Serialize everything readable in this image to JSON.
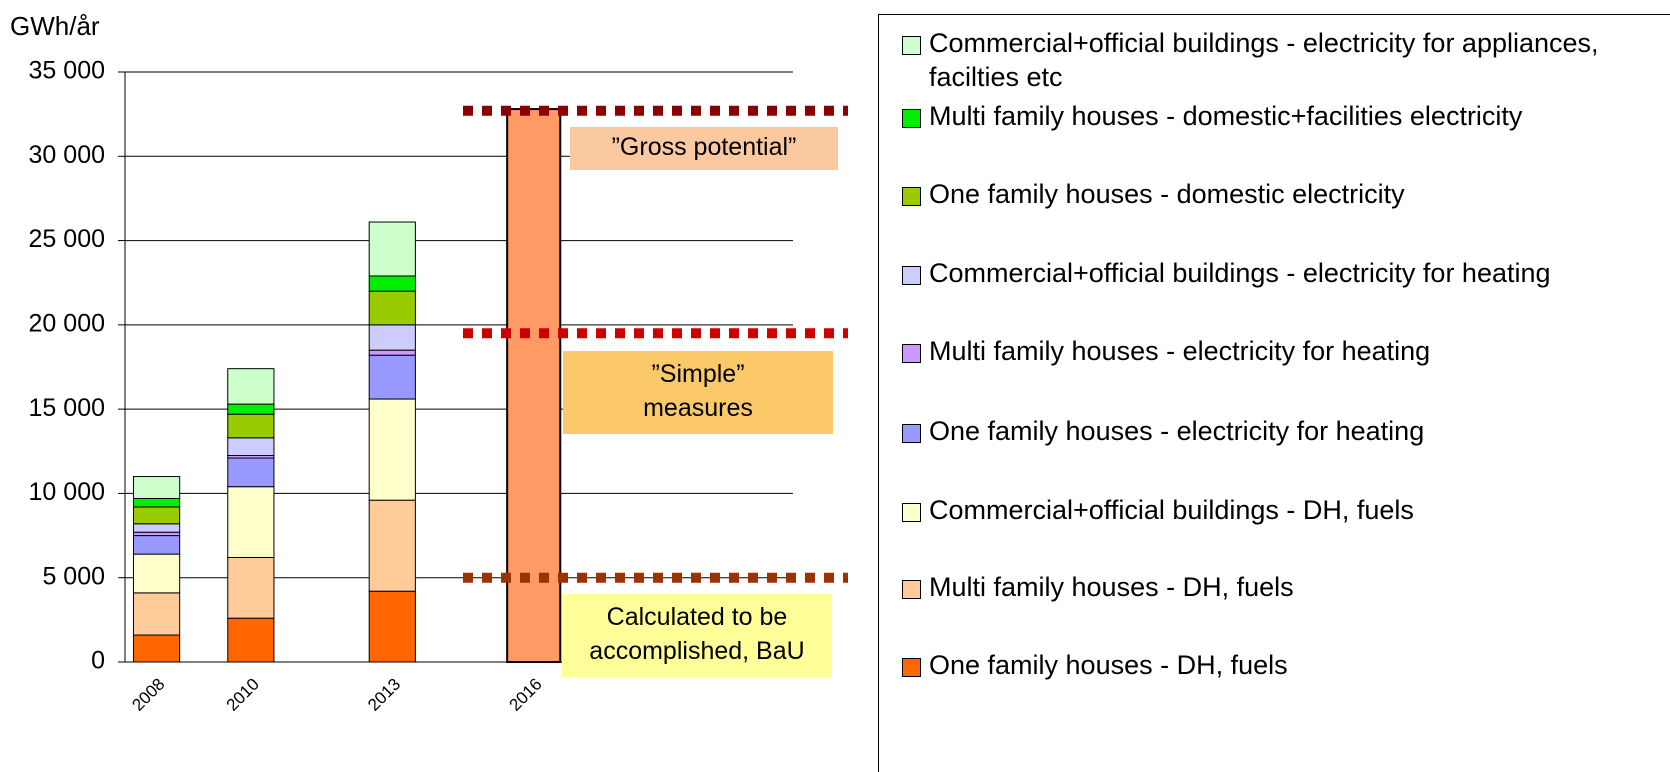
{
  "chart_data": {
    "type": "stacked_bar",
    "y_label": "GWh/år",
    "categories": [
      "2008",
      null,
      "2010",
      null,
      null,
      "2013",
      null,
      null,
      "2016",
      null,
      null,
      null,
      null,
      null
    ],
    "ylim": [
      0,
      35000
    ],
    "yticks": [
      0,
      {
        "value": 5000,
        "label": "5 000"
      },
      {
        "value": 10000,
        "label": "10 000"
      },
      {
        "value": 15000,
        "label": "15 000"
      },
      {
        "value": 20000,
        "label": "20 000"
      },
      {
        "value": 25000,
        "label": "25 000"
      },
      {
        "value": 30000,
        "label": "30 000"
      },
      {
        "value": 35000,
        "label": "35 000"
      }
    ],
    "grid": true,
    "series": [
      {
        "name": "One family houses - DH, fuels",
        "color": "#ff6600",
        "values": [
          1600,
          null,
          2600,
          null,
          null,
          4200,
          null,
          null,
          null,
          null,
          null,
          null,
          null,
          null
        ]
      },
      {
        "name": "Multi family houses - DH, fuels",
        "color": "#ffcc99",
        "values": [
          2500,
          null,
          3600,
          null,
          null,
          5400,
          null,
          null,
          null,
          null,
          null,
          null,
          null,
          null
        ]
      },
      {
        "name": "Commercial+official buildings - DH, fuels",
        "color": "#ffffcc",
        "values": [
          2300,
          null,
          4200,
          null,
          null,
          6000,
          null,
          null,
          null,
          null,
          null,
          null,
          null,
          null
        ]
      },
      {
        "name": "One family houses - electricity for heating",
        "color": "#9999ff",
        "values": [
          1100,
          null,
          1700,
          null,
          null,
          2600,
          null,
          null,
          null,
          null,
          null,
          null,
          null,
          null
        ]
      },
      {
        "name": "Multi family houses - electricity for heating",
        "color": "#cc99ff",
        "values": [
          200,
          null,
          150,
          null,
          null,
          300,
          null,
          null,
          null,
          null,
          null,
          null,
          null,
          null
        ]
      },
      {
        "name": "Commercial+official buildings - electricity for heating",
        "color": "#ccccff",
        "values": [
          500,
          null,
          1050,
          null,
          null,
          1500,
          null,
          null,
          null,
          null,
          null,
          null,
          null,
          null
        ]
      },
      {
        "name": "One family houses - domestic electricity",
        "color": "#99cc00",
        "values": [
          1000,
          null,
          1400,
          null,
          null,
          2000,
          null,
          null,
          null,
          null,
          null,
          null,
          null,
          null
        ]
      },
      {
        "name": "Multi family houses - domestic+facilities electricity",
        "color": "#00ee00",
        "values": [
          500,
          null,
          600,
          null,
          null,
          900,
          null,
          null,
          null,
          null,
          null,
          null,
          null,
          null
        ]
      },
      {
        "name": "Commercial+official buildings - electricity for appliances, facilties etc",
        "color": "#ccffcc",
        "values": [
          1300,
          null,
          2100,
          null,
          null,
          3200,
          null,
          null,
          null,
          null,
          null,
          null,
          null,
          null
        ]
      }
    ],
    "extra_bar": {
      "color": "#ff9966",
      "values": [
        null,
        null,
        null,
        null,
        null,
        null,
        null,
        null,
        32800,
        null,
        null,
        null,
        null,
        null
      ]
    },
    "reference_lines": [
      {
        "value": 32700,
        "color": "#8b0000",
        "label": [
          "”Gross potential”"
        ],
        "label_fill": "#fbc9a0"
      },
      {
        "value": 19500,
        "color": "#cc0000",
        "label": [
          "”Simple”",
          "measures"
        ],
        "label_fill": "#fcc96a"
      },
      {
        "value": 5000,
        "color": "#993300",
        "label": [
          "Calculated to be",
          "accomplished, BaU"
        ],
        "label_fill": "#ffff99"
      }
    ]
  }
}
